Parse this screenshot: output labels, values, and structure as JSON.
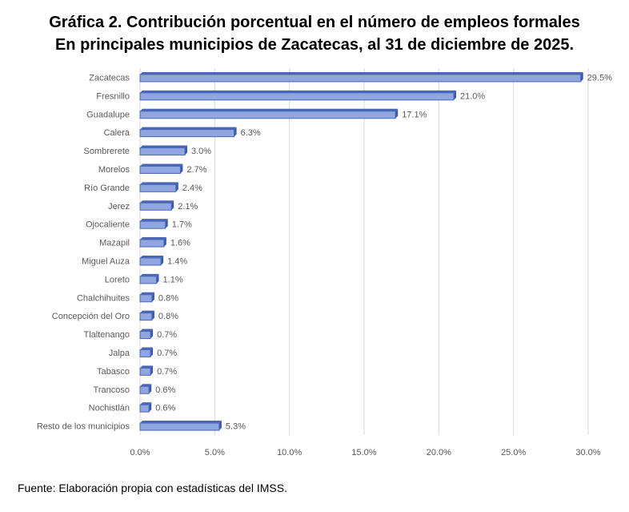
{
  "title": {
    "line1": "Gráfica 2. Contribución porcentual en el número de empleos formales",
    "line2": "En principales municipios de Zacatecas, al 31 de diciembre de 2025."
  },
  "source": "Fuente: Elaboración propia con estadísticas del IMSS.",
  "chart_data": {
    "type": "bar",
    "orientation": "horizontal",
    "title": "Gráfica 2. Contribución porcentual en el número de empleos formales En principales municipios de Zacatecas, al 31 de diciembre de 2025.",
    "xlabel": "",
    "ylabel": "",
    "xlim": [
      0,
      30
    ],
    "x_ticks": [
      0,
      5,
      10,
      15,
      20,
      25,
      30
    ],
    "x_tick_labels": [
      "0.0%",
      "5.0%",
      "10.0%",
      "15.0%",
      "20.0%",
      "25.0%",
      "30.0%"
    ],
    "grid": true,
    "legend": "none",
    "colors": {
      "bar_face": "#8fa6e0",
      "bar_side": "#3c5bab",
      "bar_border": "#4a67b5",
      "grid": "#d9d9d9",
      "label": "#595959"
    },
    "categories": [
      "Zacatecas",
      "Fresnillo",
      "Guadalupe",
      "Calera",
      "Sombrerete",
      "Morelos",
      "Río Grande",
      "Jerez",
      "Ojocaliente",
      "Mazapil",
      "Miguel Auza",
      "Loreto",
      "Chalchihuites",
      "Concepción del Oro",
      "Tlaltenango",
      "Jalpa",
      "Tabasco",
      "Trancoso",
      "Nochistlán",
      "Resto de los municipios"
    ],
    "values": [
      29.5,
      21.0,
      17.1,
      6.3,
      3.0,
      2.7,
      2.4,
      2.1,
      1.7,
      1.6,
      1.4,
      1.1,
      0.8,
      0.8,
      0.7,
      0.7,
      0.7,
      0.6,
      0.6,
      5.3
    ],
    "value_labels": [
      "29.5%",
      "21.0%",
      "17.1%",
      "6.3%",
      "3.0%",
      "2.7%",
      "2.4%",
      "2.1%",
      "1.7%",
      "1.6%",
      "1.4%",
      "1.1%",
      "0.8%",
      "0.8%",
      "0.7%",
      "0.7%",
      "0.7%",
      "0.6%",
      "0.6%",
      "5.3%"
    ]
  }
}
